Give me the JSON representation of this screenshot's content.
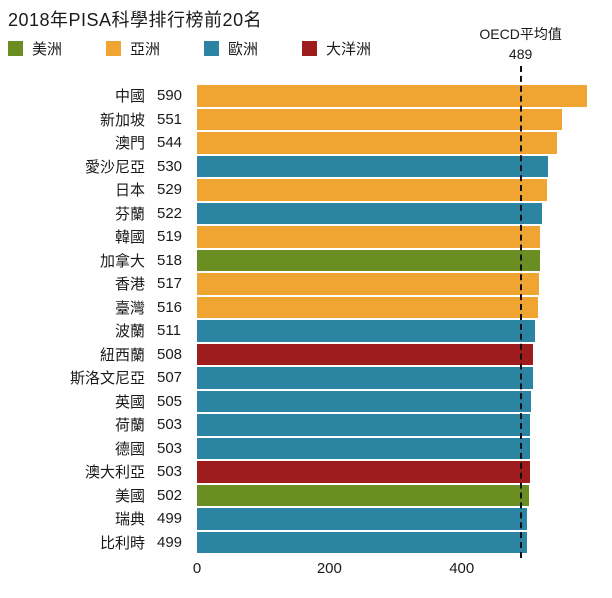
{
  "title": "2018年PISA科學排行榜前20名",
  "legend": [
    {
      "label": "美洲",
      "color": "#6B8E23"
    },
    {
      "label": "亞洲",
      "color": "#F0A532"
    },
    {
      "label": "歐洲",
      "color": "#2B84A2"
    },
    {
      "label": "大洋洲",
      "color": "#9E1B1E"
    }
  ],
  "oecd": {
    "label": "OECD平均值",
    "value": 489
  },
  "chart_data": {
    "type": "bar",
    "orientation": "horizontal",
    "title": "2018年PISA科學排行榜前20名",
    "xlabel": "",
    "ylabel": "",
    "xlim": [
      0,
      615
    ],
    "xticks": [
      0,
      200,
      400
    ],
    "grid": false,
    "legend_position": "top",
    "reference_line": {
      "label": "OECD平均值",
      "value": 489,
      "style": "dashed"
    },
    "region_colors": {
      "美洲": "#6B8E23",
      "亞洲": "#F0A532",
      "歐洲": "#2B84A2",
      "大洋洲": "#9E1B1E"
    },
    "rows": [
      {
        "country": "中國",
        "value": 590,
        "region": "亞洲"
      },
      {
        "country": "新加坡",
        "value": 551,
        "region": "亞洲"
      },
      {
        "country": "澳門",
        "value": 544,
        "region": "亞洲"
      },
      {
        "country": "愛沙尼亞",
        "value": 530,
        "region": "歐洲"
      },
      {
        "country": "日本",
        "value": 529,
        "region": "亞洲"
      },
      {
        "country": "芬蘭",
        "value": 522,
        "region": "歐洲"
      },
      {
        "country": "韓國",
        "value": 519,
        "region": "亞洲"
      },
      {
        "country": "加拿大",
        "value": 518,
        "region": "美洲"
      },
      {
        "country": "香港",
        "value": 517,
        "region": "亞洲"
      },
      {
        "country": "臺灣",
        "value": 516,
        "region": "亞洲"
      },
      {
        "country": "波蘭",
        "value": 511,
        "region": "歐洲"
      },
      {
        "country": "紐西蘭",
        "value": 508,
        "region": "大洋洲"
      },
      {
        "country": "斯洛文尼亞",
        "value": 507,
        "region": "歐洲"
      },
      {
        "country": "英國",
        "value": 505,
        "region": "歐洲"
      },
      {
        "country": "荷蘭",
        "value": 503,
        "region": "歐洲"
      },
      {
        "country": "德國",
        "value": 503,
        "region": "歐洲"
      },
      {
        "country": "澳大利亞",
        "value": 503,
        "region": "大洋洲"
      },
      {
        "country": "美國",
        "value": 502,
        "region": "美洲"
      },
      {
        "country": "瑞典",
        "value": 499,
        "region": "歐洲"
      },
      {
        "country": "比利時",
        "value": 499,
        "region": "歐洲"
      }
    ]
  }
}
